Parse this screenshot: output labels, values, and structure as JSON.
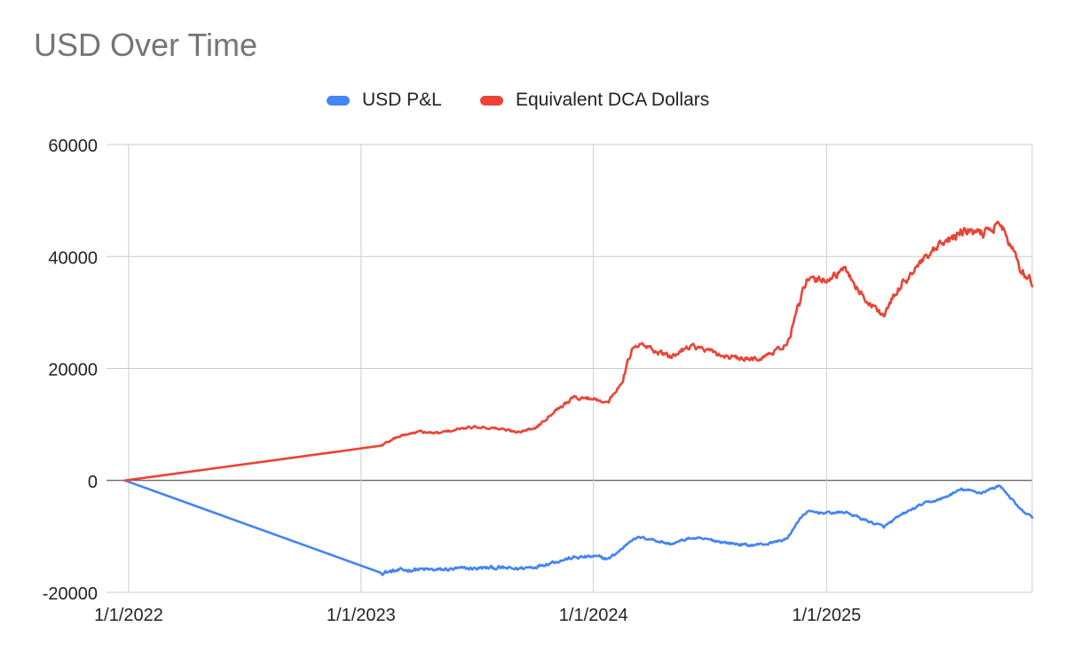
{
  "chart_data": {
    "type": "line",
    "title": "USD Over Time",
    "xlabel": "",
    "ylabel": "",
    "x_ticks": [
      "1/1/2022",
      "1/1/2023",
      "1/1/2024",
      "1/1/2025"
    ],
    "y_ticks": [
      "60000",
      "40000",
      "20000",
      "0",
      "-20000"
    ],
    "ylim": [
      -20000,
      60000
    ],
    "xlim": [
      "2022-01-01",
      "2025-11-20"
    ],
    "legend_position": "top",
    "grid": true,
    "series": [
      {
        "name": "USD P&L",
        "color": "#4285f4",
        "points": [
          [
            "2021-12-26",
            0
          ],
          [
            "2023-02-01",
            -16500
          ],
          [
            "2023-03-01",
            -16100
          ],
          [
            "2023-04-01",
            -15900
          ],
          [
            "2023-05-01",
            -16000
          ],
          [
            "2023-06-01",
            -15800
          ],
          [
            "2023-07-01",
            -15700
          ],
          [
            "2023-08-01",
            -15600
          ],
          [
            "2023-09-01",
            -15800
          ],
          [
            "2023-10-01",
            -15400
          ],
          [
            "2023-11-01",
            -14500
          ],
          [
            "2023-12-01",
            -13800
          ],
          [
            "2024-01-01",
            -13600
          ],
          [
            "2024-01-25",
            -14000
          ],
          [
            "2024-02-15",
            -12200
          ],
          [
            "2024-03-01",
            -10500
          ],
          [
            "2024-03-15",
            -10200
          ],
          [
            "2024-04-01",
            -10500
          ],
          [
            "2024-05-01",
            -11400
          ],
          [
            "2024-06-01",
            -10300
          ],
          [
            "2024-07-01",
            -10600
          ],
          [
            "2024-08-01",
            -11200
          ],
          [
            "2024-09-01",
            -11600
          ],
          [
            "2024-10-01",
            -11300
          ],
          [
            "2024-11-01",
            -10400
          ],
          [
            "2024-11-15",
            -7600
          ],
          [
            "2024-12-01",
            -5600
          ],
          [
            "2025-01-01",
            -5800
          ],
          [
            "2025-02-01",
            -5700
          ],
          [
            "2025-03-01",
            -7000
          ],
          [
            "2025-04-01",
            -8300
          ],
          [
            "2025-05-01",
            -6000
          ],
          [
            "2025-06-01",
            -4200
          ],
          [
            "2025-07-01",
            -3300
          ],
          [
            "2025-08-01",
            -1600
          ],
          [
            "2025-09-01",
            -2200
          ],
          [
            "2025-10-01",
            -900
          ],
          [
            "2025-11-01",
            -5200
          ],
          [
            "2025-11-20",
            -6600
          ]
        ]
      },
      {
        "name": "Equivalent DCA Dollars",
        "color": "#ea4335",
        "points": [
          [
            "2021-12-26",
            0
          ],
          [
            "2023-02-01",
            6200
          ],
          [
            "2023-03-01",
            7900
          ],
          [
            "2023-04-01",
            8700
          ],
          [
            "2023-05-01",
            8400
          ],
          [
            "2023-06-01",
            9100
          ],
          [
            "2023-07-01",
            9600
          ],
          [
            "2023-08-01",
            9300
          ],
          [
            "2023-09-01",
            8700
          ],
          [
            "2023-10-01",
            9300
          ],
          [
            "2023-11-01",
            12500
          ],
          [
            "2023-12-01",
            14800
          ],
          [
            "2024-01-01",
            14600
          ],
          [
            "2024-01-25",
            14000
          ],
          [
            "2024-02-15",
            17800
          ],
          [
            "2024-03-01",
            23200
          ],
          [
            "2024-03-15",
            24200
          ],
          [
            "2024-04-01",
            23500
          ],
          [
            "2024-05-01",
            22000
          ],
          [
            "2024-06-01",
            24200
          ],
          [
            "2024-07-01",
            23000
          ],
          [
            "2024-08-01",
            22000
          ],
          [
            "2024-09-01",
            21500
          ],
          [
            "2024-10-01",
            22300
          ],
          [
            "2024-11-01",
            24500
          ],
          [
            "2024-11-15",
            30000
          ],
          [
            "2024-12-01",
            35500
          ],
          [
            "2025-01-01",
            36000
          ],
          [
            "2025-02-01",
            37500
          ],
          [
            "2025-03-01",
            32500
          ],
          [
            "2025-04-01",
            29500
          ],
          [
            "2025-05-01",
            35500
          ],
          [
            "2025-06-01",
            39000
          ],
          [
            "2025-07-01",
            42000
          ],
          [
            "2025-08-01",
            44500
          ],
          [
            "2025-09-01",
            44000
          ],
          [
            "2025-10-01",
            46000
          ],
          [
            "2025-11-01",
            38000
          ],
          [
            "2025-11-20",
            35500
          ]
        ]
      }
    ]
  }
}
